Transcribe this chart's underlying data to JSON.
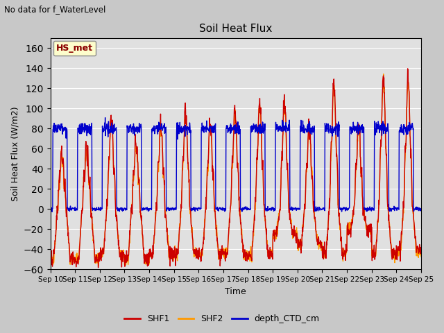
{
  "title": "Soil Heat Flux",
  "ylabel": "Soil Heat Flux (W/m2)",
  "xlabel": "Time",
  "suptitle_left": "No data for f_WaterLevel",
  "legend_box_label": "HS_met",
  "ylim": [
    -60,
    170
  ],
  "yticks": [
    -60,
    -40,
    -20,
    0,
    20,
    40,
    60,
    80,
    100,
    120,
    140,
    160
  ],
  "series": [
    "SHF1",
    "SHF2",
    "depth_CTD_cm"
  ],
  "colors": [
    "#cc0000",
    "#ff9900",
    "#0000cc"
  ],
  "line_width": 1.0,
  "num_days": 15,
  "date_labels": [
    "Sep 10",
    "Sep 11",
    "Sep 12",
    "Sep 13",
    "Sep 14",
    "Sep 15",
    "Sep 16",
    "Sep 17",
    "Sep 18",
    "Sep 19",
    "Sep 20",
    "Sep 21",
    "Sep 22",
    "Sep 23",
    "Sep 24",
    "Sep 25"
  ],
  "fig_bg_color": "#c8c8c8",
  "plot_bg_color": "#e0e0e0",
  "grid_color": "#ffffff"
}
